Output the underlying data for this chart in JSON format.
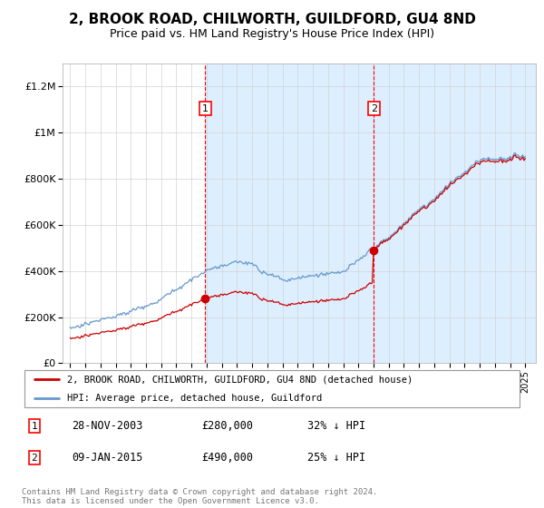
{
  "title": "2, BROOK ROAD, CHILWORTH, GUILDFORD, GU4 8ND",
  "subtitle": "Price paid vs. HM Land Registry's House Price Index (HPI)",
  "title_fontsize": 11,
  "subtitle_fontsize": 9,
  "ylim": [
    0,
    1300000
  ],
  "yticks": [
    0,
    200000,
    400000,
    600000,
    800000,
    1000000,
    1200000
  ],
  "ytick_labels": [
    "£0",
    "£200K",
    "£400K",
    "£600K",
    "£800K",
    "£1M",
    "£1.2M"
  ],
  "shade_color": "#ddeeff",
  "hpi_color": "#6699cc",
  "price_color": "#cc0000",
  "sale1_date": "28-NOV-2003",
  "sale1_price": 280000,
  "sale1_pct": "32% ↓ HPI",
  "sale2_date": "09-JAN-2015",
  "sale2_price": 490000,
  "sale2_pct": "25% ↓ HPI",
  "legend_label_price": "2, BROOK ROAD, CHILWORTH, GUILDFORD, GU4 8ND (detached house)",
  "legend_label_hpi": "HPI: Average price, detached house, Guildford",
  "footer": "Contains HM Land Registry data © Crown copyright and database right 2024.\nThis data is licensed under the Open Government Licence v3.0.",
  "sale1_x": 2003.9,
  "sale2_x": 2015.03
}
